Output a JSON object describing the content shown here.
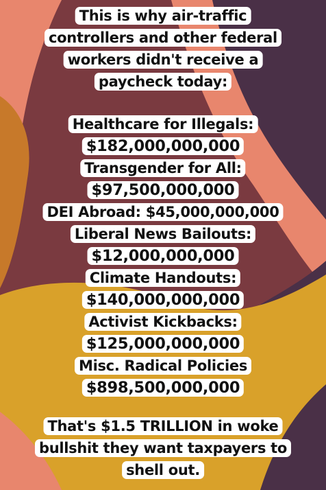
{
  "colors": {
    "maroon": "#7a3a40",
    "dark_purple": "#4a3047",
    "salmon": "#e8866d",
    "mustard": "#d9a12a",
    "ochre": "#c7792a",
    "caption_bg": "#ffffff",
    "caption_text": "#111111"
  },
  "intro": [
    "This is why air-traffic",
    "controllers and other federal",
    "workers didn't receive a",
    "paycheck today:"
  ],
  "items": [
    {
      "label": "Healthcare for Illegals:",
      "amount": "$182,000,000,000"
    },
    {
      "label": "Transgender for All:",
      "amount": "$97,500,000,000"
    },
    {
      "label": "DEI Abroad: $45,000,000,000"
    },
    {
      "label": "Liberal News Bailouts:",
      "amount": "$12,000,000,000"
    },
    {
      "label": "Climate Handouts:",
      "amount": "$140,000,000,000"
    },
    {
      "label": "Activist Kickbacks:",
      "amount": "$125,000,000,000"
    },
    {
      "label": "Misc. Radical Policies",
      "amount": "$898,500,000,000"
    }
  ],
  "outro": [
    "That's $1.5 TRILLION in woke",
    "bullshit they want taxpayers to",
    "shell out."
  ]
}
